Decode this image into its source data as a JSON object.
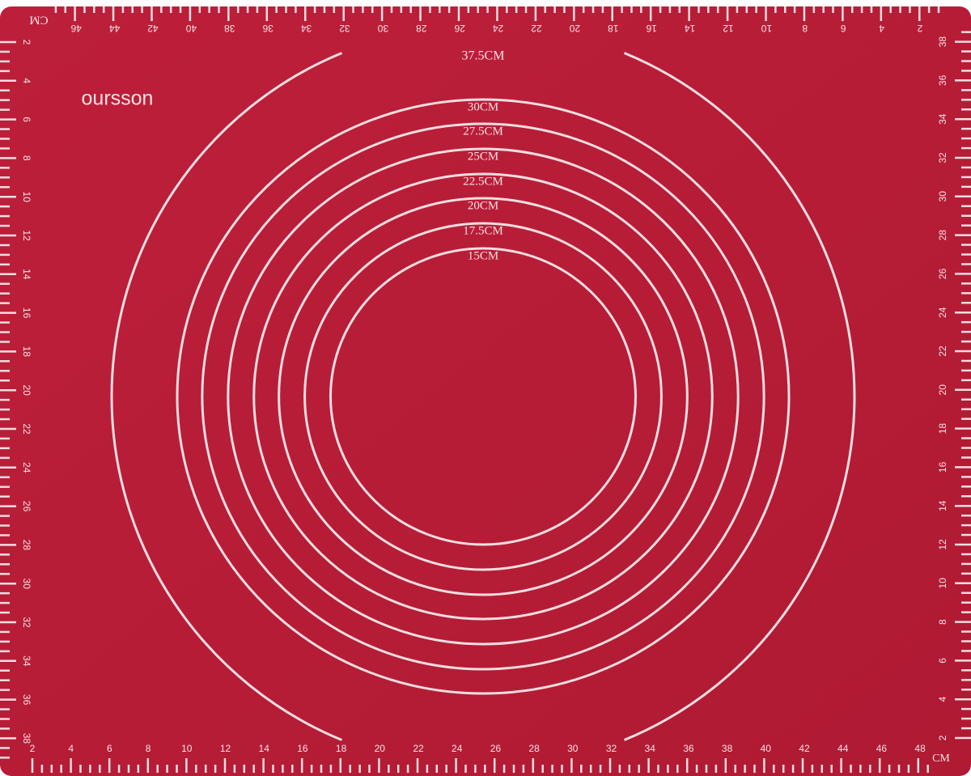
{
  "brand": "oursson",
  "unit_top": "CM",
  "unit_bottom": "CM",
  "circles": [
    {
      "label": "37.5CM"
    },
    {
      "label": "30CM"
    },
    {
      "label": "27.5CM"
    },
    {
      "label": "25CM"
    },
    {
      "label": "22.5CM"
    },
    {
      "label": "20CM"
    },
    {
      "label": "17.5CM"
    },
    {
      "label": "15CM"
    }
  ],
  "rulers": {
    "top": [
      2,
      4,
      6,
      8,
      10,
      12,
      14,
      16,
      18,
      20,
      22,
      24,
      26,
      28,
      30,
      32,
      34,
      36,
      38,
      40,
      42,
      44,
      46
    ],
    "bottom": [
      2,
      4,
      6,
      8,
      10,
      12,
      14,
      16,
      18,
      20,
      22,
      24,
      26,
      28,
      30,
      32,
      34,
      36,
      38,
      40,
      42,
      44,
      46,
      48
    ],
    "left": [
      2,
      4,
      6,
      8,
      10,
      12,
      14,
      16,
      18,
      20,
      22,
      24,
      26,
      28,
      30,
      32,
      34,
      36,
      38
    ],
    "right": [
      2,
      4,
      6,
      8,
      10,
      12,
      14,
      16,
      18,
      20,
      22,
      24,
      26,
      28,
      30,
      32,
      34,
      36,
      38
    ]
  }
}
